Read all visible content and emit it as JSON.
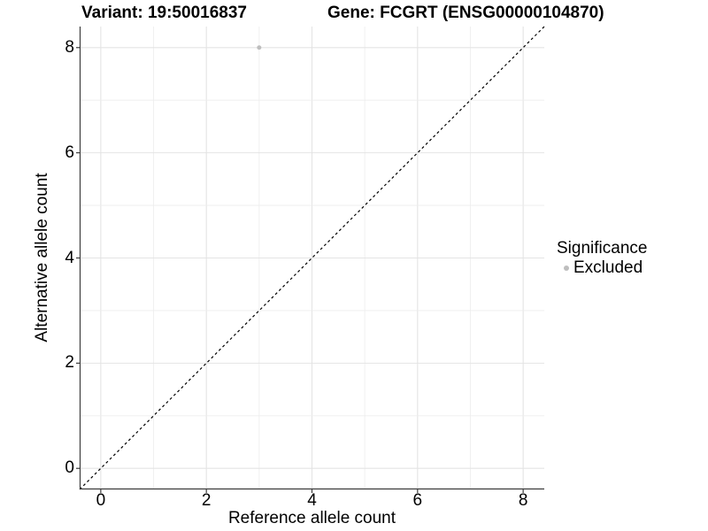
{
  "header": {
    "variant_title": "Variant: 19:50016837",
    "gene_title": "Gene: FCGRT (ENSG00000104870)"
  },
  "chart_data": {
    "type": "scatter",
    "xlabel": "Reference allele count",
    "ylabel": "Alternative allele count",
    "xlim": [
      -0.4,
      8.4
    ],
    "ylim": [
      -0.4,
      8.4
    ],
    "x_ticks": [
      0,
      2,
      4,
      6,
      8
    ],
    "y_ticks": [
      0,
      2,
      4,
      6,
      8
    ],
    "grid_x": [
      0,
      1,
      2,
      3,
      4,
      5,
      6,
      7,
      8
    ],
    "grid_y": [
      0,
      1,
      2,
      3,
      4,
      5,
      6,
      7,
      8
    ],
    "grid_on": true,
    "identity_line": {
      "style": "dashed",
      "slope": 1,
      "intercept": 0,
      "color": "#000000"
    },
    "series": [
      {
        "name": "Excluded",
        "color": "#bebebe",
        "point_radius": 2.5,
        "points": [
          {
            "x": 3,
            "y": 8
          }
        ]
      }
    ],
    "legend": {
      "title": "Significance",
      "position": "right",
      "entries": [
        {
          "label": "Excluded",
          "color": "#bebebe"
        }
      ]
    },
    "colors": {
      "background": "#ffffff",
      "grid_major": "#e4e4e4",
      "grid_minor": "#ededed",
      "axis_line": "#3c3c3c",
      "tick_mark": "#3c3c3c",
      "text": "#000000"
    }
  }
}
